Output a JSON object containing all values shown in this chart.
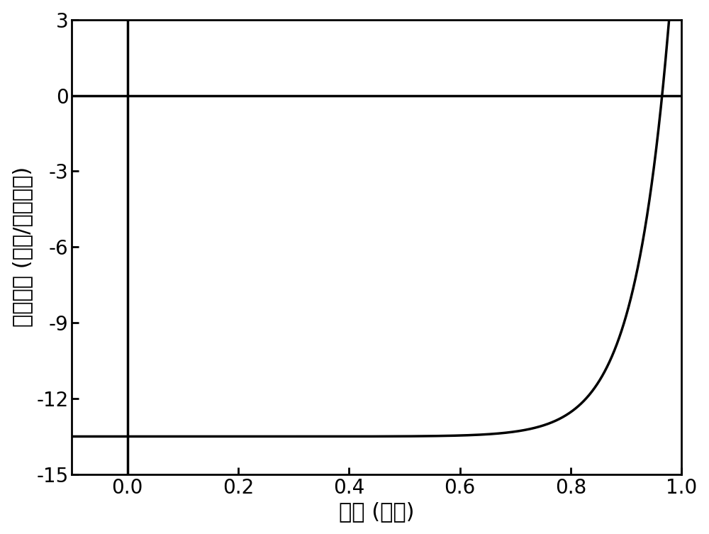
{
  "title": "",
  "xlabel": "电压 (伏特)",
  "ylabel": "电流密度 (毫安/平方厘米)",
  "xlim": [
    -0.1,
    1.0
  ],
  "ylim": [
    -15,
    3
  ],
  "xticks": [
    0.0,
    0.2,
    0.4,
    0.6,
    0.8,
    1.0
  ],
  "yticks": [
    -15,
    -12,
    -9,
    -6,
    -3,
    0,
    3
  ],
  "line_color": "#000000",
  "line_width": 2.5,
  "background_color": "#ffffff",
  "jsc": -13.5,
  "voc": 0.965,
  "alpha": 16.0,
  "xlabel_fontsize": 22,
  "ylabel_fontsize": 22,
  "tick_fontsize": 20,
  "spine_linewidth": 2.0,
  "ref_linewidth": 2.5
}
